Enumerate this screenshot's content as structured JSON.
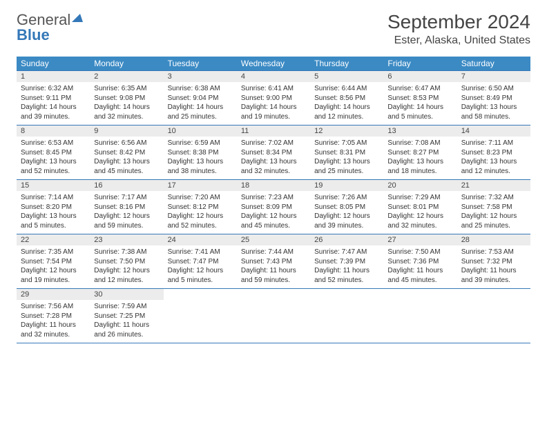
{
  "brand": {
    "general": "General",
    "blue": "Blue"
  },
  "title": "September 2024",
  "location": "Ester, Alaska, United States",
  "colors": {
    "header_bg": "#3b8ac4",
    "border": "#3478b8",
    "daynum_bg": "#ececec",
    "text": "#333333",
    "brand_gray": "#555555",
    "brand_blue": "#3478b8"
  },
  "weekdays": [
    "Sunday",
    "Monday",
    "Tuesday",
    "Wednesday",
    "Thursday",
    "Friday",
    "Saturday"
  ],
  "weeks": [
    [
      {
        "n": "1",
        "sr": "6:32 AM",
        "ss": "9:11 PM",
        "dl": "14 hours and 39 minutes."
      },
      {
        "n": "2",
        "sr": "6:35 AM",
        "ss": "9:08 PM",
        "dl": "14 hours and 32 minutes."
      },
      {
        "n": "3",
        "sr": "6:38 AM",
        "ss": "9:04 PM",
        "dl": "14 hours and 25 minutes."
      },
      {
        "n": "4",
        "sr": "6:41 AM",
        "ss": "9:00 PM",
        "dl": "14 hours and 19 minutes."
      },
      {
        "n": "5",
        "sr": "6:44 AM",
        "ss": "8:56 PM",
        "dl": "14 hours and 12 minutes."
      },
      {
        "n": "6",
        "sr": "6:47 AM",
        "ss": "8:53 PM",
        "dl": "14 hours and 5 minutes."
      },
      {
        "n": "7",
        "sr": "6:50 AM",
        "ss": "8:49 PM",
        "dl": "13 hours and 58 minutes."
      }
    ],
    [
      {
        "n": "8",
        "sr": "6:53 AM",
        "ss": "8:45 PM",
        "dl": "13 hours and 52 minutes."
      },
      {
        "n": "9",
        "sr": "6:56 AM",
        "ss": "8:42 PM",
        "dl": "13 hours and 45 minutes."
      },
      {
        "n": "10",
        "sr": "6:59 AM",
        "ss": "8:38 PM",
        "dl": "13 hours and 38 minutes."
      },
      {
        "n": "11",
        "sr": "7:02 AM",
        "ss": "8:34 PM",
        "dl": "13 hours and 32 minutes."
      },
      {
        "n": "12",
        "sr": "7:05 AM",
        "ss": "8:31 PM",
        "dl": "13 hours and 25 minutes."
      },
      {
        "n": "13",
        "sr": "7:08 AM",
        "ss": "8:27 PM",
        "dl": "13 hours and 18 minutes."
      },
      {
        "n": "14",
        "sr": "7:11 AM",
        "ss": "8:23 PM",
        "dl": "13 hours and 12 minutes."
      }
    ],
    [
      {
        "n": "15",
        "sr": "7:14 AM",
        "ss": "8:20 PM",
        "dl": "13 hours and 5 minutes."
      },
      {
        "n": "16",
        "sr": "7:17 AM",
        "ss": "8:16 PM",
        "dl": "12 hours and 59 minutes."
      },
      {
        "n": "17",
        "sr": "7:20 AM",
        "ss": "8:12 PM",
        "dl": "12 hours and 52 minutes."
      },
      {
        "n": "18",
        "sr": "7:23 AM",
        "ss": "8:09 PM",
        "dl": "12 hours and 45 minutes."
      },
      {
        "n": "19",
        "sr": "7:26 AM",
        "ss": "8:05 PM",
        "dl": "12 hours and 39 minutes."
      },
      {
        "n": "20",
        "sr": "7:29 AM",
        "ss": "8:01 PM",
        "dl": "12 hours and 32 minutes."
      },
      {
        "n": "21",
        "sr": "7:32 AM",
        "ss": "7:58 PM",
        "dl": "12 hours and 25 minutes."
      }
    ],
    [
      {
        "n": "22",
        "sr": "7:35 AM",
        "ss": "7:54 PM",
        "dl": "12 hours and 19 minutes."
      },
      {
        "n": "23",
        "sr": "7:38 AM",
        "ss": "7:50 PM",
        "dl": "12 hours and 12 minutes."
      },
      {
        "n": "24",
        "sr": "7:41 AM",
        "ss": "7:47 PM",
        "dl": "12 hours and 5 minutes."
      },
      {
        "n": "25",
        "sr": "7:44 AM",
        "ss": "7:43 PM",
        "dl": "11 hours and 59 minutes."
      },
      {
        "n": "26",
        "sr": "7:47 AM",
        "ss": "7:39 PM",
        "dl": "11 hours and 52 minutes."
      },
      {
        "n": "27",
        "sr": "7:50 AM",
        "ss": "7:36 PM",
        "dl": "11 hours and 45 minutes."
      },
      {
        "n": "28",
        "sr": "7:53 AM",
        "ss": "7:32 PM",
        "dl": "11 hours and 39 minutes."
      }
    ],
    [
      {
        "n": "29",
        "sr": "7:56 AM",
        "ss": "7:28 PM",
        "dl": "11 hours and 32 minutes."
      },
      {
        "n": "30",
        "sr": "7:59 AM",
        "ss": "7:25 PM",
        "dl": "11 hours and 26 minutes."
      },
      null,
      null,
      null,
      null,
      null
    ]
  ],
  "labels": {
    "sunrise": "Sunrise:",
    "sunset": "Sunset:",
    "daylight": "Daylight:"
  }
}
